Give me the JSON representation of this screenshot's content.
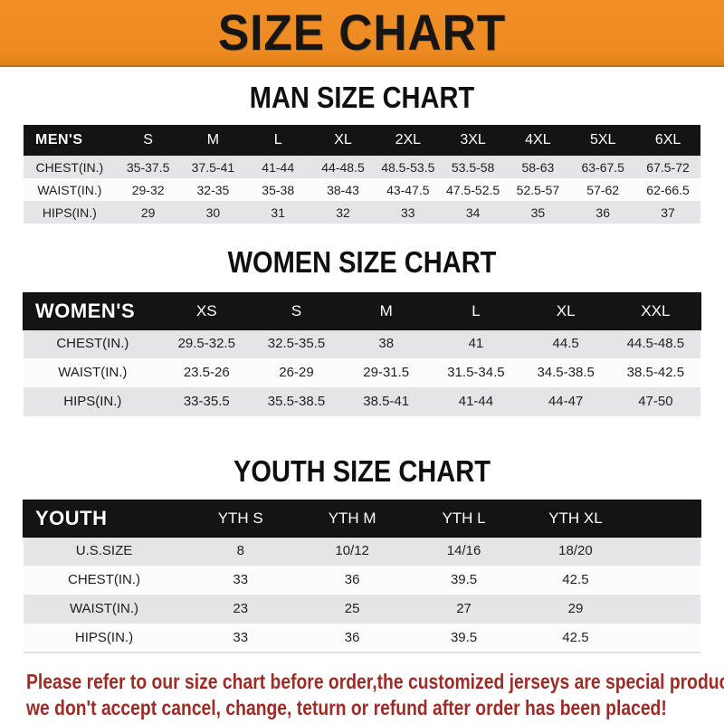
{
  "banner": {
    "title": "SIZE CHART",
    "bg_color": "#ec8b23",
    "text_color": "#181614"
  },
  "sections": [
    {
      "heading": "MAN SIZE CHART",
      "table": {
        "label": "MEN'S",
        "columns": [
          "S",
          "M",
          "L",
          "XL",
          "2XL",
          "3XL",
          "4XL",
          "5XL",
          "6XL"
        ],
        "rows": [
          {
            "label": "CHEST(IN.)",
            "values": [
              "35-37.5",
              "37.5-41",
              "41-44",
              "44-48.5",
              "48.5-53.5",
              "53.5-58",
              "58-63",
              "63-67.5",
              "67.5-72"
            ]
          },
          {
            "label": "WAIST(IN.)",
            "values": [
              "29-32",
              "32-35",
              "35-38",
              "38-43",
              "43-47.5",
              "47.5-52.5",
              "52.5-57",
              "57-62",
              "62-66.5"
            ]
          },
          {
            "label": "HIPS(IN.)",
            "values": [
              "29",
              "30",
              "31",
              "32",
              "33",
              "34",
              "35",
              "36",
              "37"
            ]
          }
        ]
      }
    },
    {
      "heading": "WOMEN SIZE CHART",
      "table": {
        "label": "WOMEN'S",
        "columns": [
          "XS",
          "S",
          "M",
          "L",
          "XL",
          "XXL"
        ],
        "rows": [
          {
            "label": "CHEST(IN.)",
            "values": [
              "29.5-32.5",
              "32.5-35.5",
              "38",
              "41",
              "44.5",
              "44.5-48.5"
            ]
          },
          {
            "label": "WAIST(IN.)",
            "values": [
              "23.5-26",
              "26-29",
              "29-31.5",
              "31.5-34.5",
              "34.5-38.5",
              "38.5-42.5"
            ]
          },
          {
            "label": "HIPS(IN.)",
            "values": [
              "33-35.5",
              "35.5-38.5",
              "38.5-41",
              "41-44",
              "44-47",
              "47-50"
            ]
          }
        ]
      }
    },
    {
      "heading": "YOUTH SIZE CHART",
      "table": {
        "label": "YOUTH",
        "columns": [
          "YTH S",
          "YTH M",
          "YTH L",
          "YTH XL"
        ],
        "rows": [
          {
            "label": "U.S.SIZE",
            "values": [
              "8",
              "10/12",
              "14/16",
              "18/20"
            ]
          },
          {
            "label": "CHEST(IN.)",
            "values": [
              "33",
              "36",
              "39.5",
              "42.5"
            ]
          },
          {
            "label": "WAIST(IN.)",
            "values": [
              "23",
              "25",
              "27",
              "29"
            ]
          },
          {
            "label": "HIPS(IN.)",
            "values": [
              "33",
              "36",
              "39.5",
              "42.5"
            ]
          }
        ]
      }
    }
  ],
  "footer": {
    "lines": [
      "Please refer to our size chart before order,the customized jerseys are special products,",
      "we don't accept cancel, change, teturn or refund after order has been placed!"
    ],
    "text_color": "#9e2c26"
  }
}
